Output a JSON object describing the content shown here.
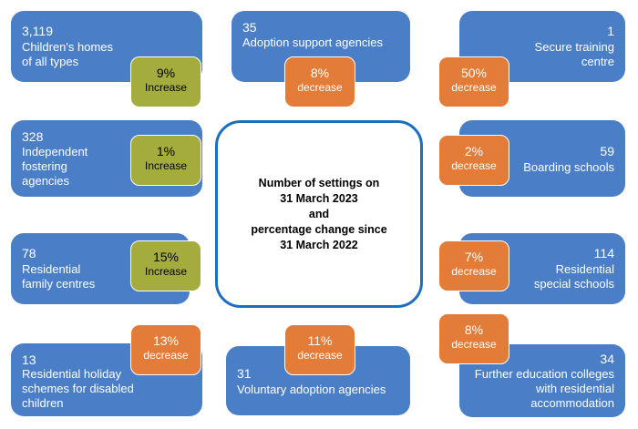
{
  "center": {
    "title": "Number of settings on\n31 March 2023\nand\npercentage change since\n31 March 2022"
  },
  "colors": {
    "card_blue": "#4a7fc8",
    "increase_green": "#a5ac3e",
    "decrease_orange": "#e27c38",
    "center_border": "#1a6fc0"
  },
  "settings": {
    "childrens_homes": {
      "count": "3,119",
      "label": "Children's homes\nof all types",
      "change": "9%",
      "direction": "Increase"
    },
    "adoption_support": {
      "count": "35",
      "label": "Adoption support agencies",
      "change": "8%",
      "direction": "decrease"
    },
    "secure_training": {
      "count": "1",
      "label": "Secure training\ncentre",
      "change": "50%",
      "direction": "decrease"
    },
    "fostering": {
      "count": "328",
      "label": "Independent\nfostering\nagencies",
      "change": "1%",
      "direction": "Increase"
    },
    "boarding": {
      "count": "59",
      "label": "Boarding schools",
      "change": "2%",
      "direction": "decrease"
    },
    "family_centres": {
      "count": "78",
      "label": "Residential\nfamily centres",
      "change": "15%",
      "direction": "Increase"
    },
    "special_schools": {
      "count": "114",
      "label": "Residential\nspecial schools",
      "change": "7%",
      "direction": "decrease"
    },
    "holiday_schemes": {
      "count": "13",
      "label": "Residential holiday\nschemes for disabled\nchildren",
      "change": "13%",
      "direction": "decrease"
    },
    "voluntary_adoption": {
      "count": "31",
      "label": "Voluntary adoption agencies",
      "change": "11%",
      "direction": "decrease"
    },
    "fe_colleges": {
      "count": "34",
      "label": "Further education colleges\nwith residential\naccommodation",
      "change": "8%",
      "direction": "decrease"
    }
  }
}
